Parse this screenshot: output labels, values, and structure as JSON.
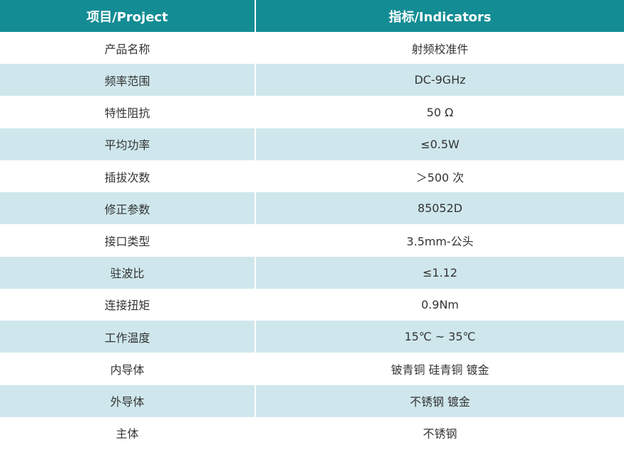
{
  "table": {
    "header": [
      "项目/Project",
      "指标/Indicators"
    ],
    "rows": [
      [
        "产品名称",
        "射频校准件"
      ],
      [
        "频率范围",
        "DC-9GHz"
      ],
      [
        "特性阻抗",
        "50 Ω"
      ],
      [
        "平均功率",
        "≤0.5W"
      ],
      [
        "插拔次数",
        "＞500 次"
      ],
      [
        "修正参数",
        "85052D"
      ],
      [
        "接口类型",
        "3.5mm-公头"
      ],
      [
        "驻波比",
        "≤1.12"
      ],
      [
        "连接扭矩",
        "0.9Nm"
      ],
      [
        "工作温度",
        "15℃ ~ 35℃"
      ],
      [
        "内导体",
        "铍青铜 硅青铜 镀金"
      ],
      [
        "外导体",
        "不锈钢 镀金"
      ],
      [
        "主体",
        "不锈钢"
      ]
    ]
  }
}
